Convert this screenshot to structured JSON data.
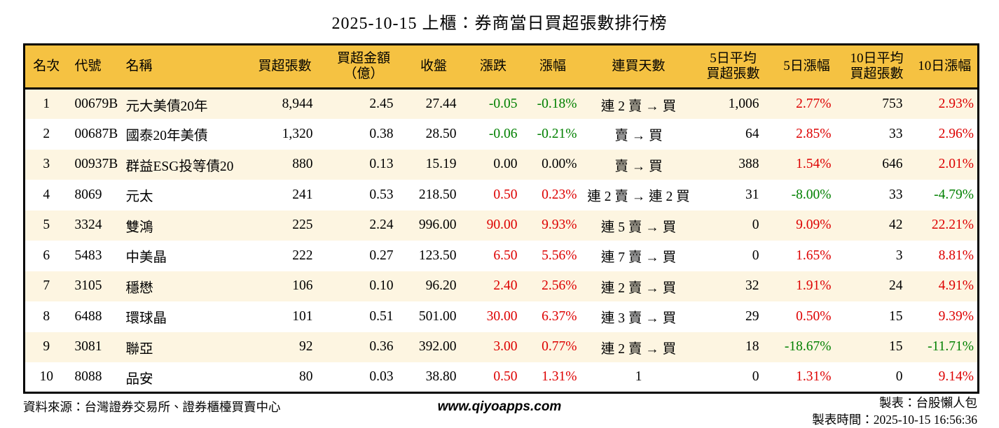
{
  "title": "2025-10-15 上櫃：券商當日買超張數排行榜",
  "colors": {
    "header_accent": "#F5C242",
    "row_stripe": "#FDF5E1",
    "rise_red": "#DD0000",
    "fall_green": "#008000",
    "border": "#000000"
  },
  "table": {
    "columns": [
      "名次",
      "代號",
      "名稱",
      "買超張數",
      "買超金額\n（億）",
      "收盤",
      "漲跌",
      "漲幅",
      "連買天數",
      "5日平均\n買超張數",
      "5日漲幅",
      "10日平均\n買超張數",
      "10日漲幅"
    ],
    "rows": [
      {
        "rank": "1",
        "code": "00679B",
        "name": "元大美債20年",
        "vol": "8,944",
        "amt": "2.45",
        "close": "27.44",
        "chg": "-0.05",
        "chgp": "-0.18%",
        "streak": "連 2 賣 → 買",
        "avg5": "1,006",
        "p5": "2.77%",
        "avg10": "753",
        "p10": "2.93%",
        "chg_dir": "down",
        "p5_dir": "up",
        "p10_dir": "up"
      },
      {
        "rank": "2",
        "code": "00687B",
        "name": "國泰20年美債",
        "vol": "1,320",
        "amt": "0.38",
        "close": "28.50",
        "chg": "-0.06",
        "chgp": "-0.21%",
        "streak": "賣 → 買",
        "avg5": "64",
        "p5": "2.85%",
        "avg10": "33",
        "p10": "2.96%",
        "chg_dir": "down",
        "p5_dir": "up",
        "p10_dir": "up"
      },
      {
        "rank": "3",
        "code": "00937B",
        "name": "群益ESG投等債20",
        "vol": "880",
        "amt": "0.13",
        "close": "15.19",
        "chg": "0.00",
        "chgp": "0.00%",
        "streak": "賣 → 買",
        "avg5": "388",
        "p5": "1.54%",
        "avg10": "646",
        "p10": "2.01%",
        "chg_dir": "flat",
        "p5_dir": "up",
        "p10_dir": "up"
      },
      {
        "rank": "4",
        "code": "8069",
        "name": "元太",
        "vol": "241",
        "amt": "0.53",
        "close": "218.50",
        "chg": "0.50",
        "chgp": "0.23%",
        "streak": "連 2 賣 → 連 2 買",
        "avg5": "31",
        "p5": "-8.00%",
        "avg10": "33",
        "p10": "-4.79%",
        "chg_dir": "up",
        "p5_dir": "down",
        "p10_dir": "down"
      },
      {
        "rank": "5",
        "code": "3324",
        "name": "雙鴻",
        "vol": "225",
        "amt": "2.24",
        "close": "996.00",
        "chg": "90.00",
        "chgp": "9.93%",
        "streak": "連 5 賣 → 買",
        "avg5": "0",
        "p5": "9.09%",
        "avg10": "42",
        "p10": "22.21%",
        "chg_dir": "up",
        "p5_dir": "up",
        "p10_dir": "up"
      },
      {
        "rank": "6",
        "code": "5483",
        "name": "中美晶",
        "vol": "222",
        "amt": "0.27",
        "close": "123.50",
        "chg": "6.50",
        "chgp": "5.56%",
        "streak": "連 7 賣 → 買",
        "avg5": "0",
        "p5": "1.65%",
        "avg10": "3",
        "p10": "8.81%",
        "chg_dir": "up",
        "p5_dir": "up",
        "p10_dir": "up"
      },
      {
        "rank": "7",
        "code": "3105",
        "name": "穩懋",
        "vol": "106",
        "amt": "0.10",
        "close": "96.20",
        "chg": "2.40",
        "chgp": "2.56%",
        "streak": "連 2 賣 → 買",
        "avg5": "32",
        "p5": "1.91%",
        "avg10": "24",
        "p10": "4.91%",
        "chg_dir": "up",
        "p5_dir": "up",
        "p10_dir": "up"
      },
      {
        "rank": "8",
        "code": "6488",
        "name": "環球晶",
        "vol": "101",
        "amt": "0.51",
        "close": "501.00",
        "chg": "30.00",
        "chgp": "6.37%",
        "streak": "連 3 賣 → 買",
        "avg5": "29",
        "p5": "0.50%",
        "avg10": "15",
        "p10": "9.39%",
        "chg_dir": "up",
        "p5_dir": "up",
        "p10_dir": "up"
      },
      {
        "rank": "9",
        "code": "3081",
        "name": "聯亞",
        "vol": "92",
        "amt": "0.36",
        "close": "392.00",
        "chg": "3.00",
        "chgp": "0.77%",
        "streak": "連 2 賣 → 買",
        "avg5": "18",
        "p5": "-18.67%",
        "avg10": "15",
        "p10": "-11.71%",
        "chg_dir": "up",
        "p5_dir": "down",
        "p10_dir": "down"
      },
      {
        "rank": "10",
        "code": "8088",
        "name": "品安",
        "vol": "80",
        "amt": "0.03",
        "close": "38.80",
        "chg": "0.50",
        "chgp": "1.31%",
        "streak": "1",
        "avg5": "0",
        "p5": "1.31%",
        "avg10": "0",
        "p10": "9.14%",
        "chg_dir": "up",
        "p5_dir": "up",
        "p10_dir": "up"
      }
    ]
  },
  "footer": {
    "source": "資料來源：台灣證券交易所、證券櫃檯買賣中心",
    "website": "www.qiyoapps.com",
    "author": "製表：台股懶人包",
    "generated": "製表時間：2025-10-15 16:56:36"
  }
}
